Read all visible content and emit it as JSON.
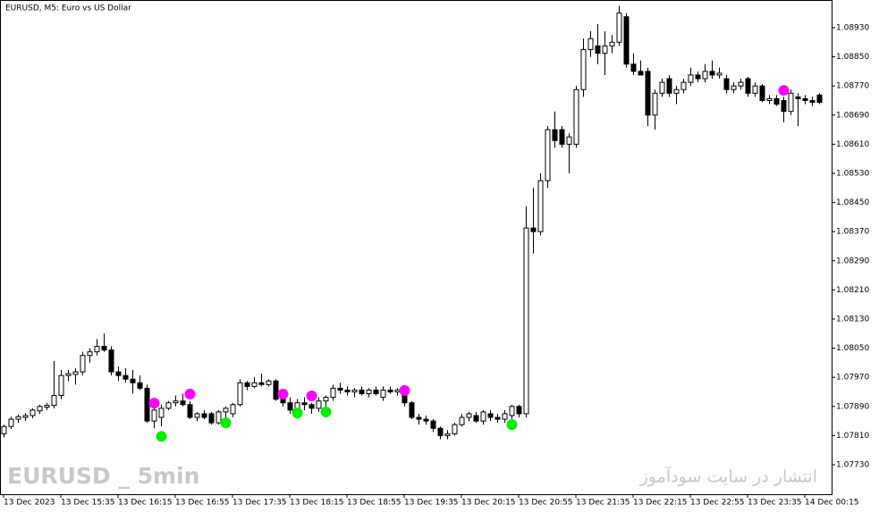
{
  "chart_data": {
    "type": "candlestick",
    "title": "EURUSD, M5:  Euro vs US Dollar",
    "watermark_left": "EURUSD _ 5min",
    "watermark_right": "انتشار در سایت سودآموز",
    "categories": [
      "13 Dec 2023",
      null,
      null,
      null,
      null,
      null,
      null,
      null,
      "13 Dec 15:35",
      null,
      null,
      null,
      null,
      null,
      null,
      null,
      "13 Dec 16:15",
      null,
      null,
      null,
      null,
      null,
      null,
      null,
      "13 Dec 16:55",
      null,
      null,
      null,
      null,
      null,
      null,
      null,
      "13 Dec 17:35",
      null,
      null,
      null,
      null,
      null,
      null,
      null,
      "13 Dec 18:15",
      null,
      null,
      null,
      null,
      null,
      null,
      null,
      "13 Dec 18:55",
      null,
      null,
      null,
      null,
      null,
      null,
      null,
      "13 Dec 19:35",
      null,
      null,
      null,
      null,
      null,
      null,
      null,
      "13 Dec 20:15",
      null,
      null,
      null,
      null,
      null,
      null,
      null,
      "13 Dec 20:55",
      null,
      null,
      null,
      null,
      null,
      null,
      null,
      "13 Dec 21:35",
      null,
      null,
      null,
      null,
      null,
      null,
      null,
      "13 Dec 22:15",
      null,
      null,
      null,
      null,
      null,
      null,
      null,
      "13 Dec 22:55",
      null,
      null,
      null,
      null,
      null,
      null,
      null,
      "13 Dec 23:35",
      null,
      null,
      null,
      null,
      null,
      null,
      null,
      "14 Dec 00:15",
      null,
      null
    ],
    "open": [
      1.07815,
      1.07835,
      1.07855,
      1.0786,
      1.07865,
      1.07878,
      1.07888,
      1.07893,
      1.0792,
      1.07975,
      1.07978,
      1.07985,
      1.0803,
      1.0804,
      1.08055,
      1.08045,
      1.07985,
      1.07975,
      1.07965,
      1.07955,
      1.0794,
      1.0785,
      1.0786,
      1.07885,
      1.079,
      1.07905,
      1.07895,
      1.0786,
      1.0787,
      1.0787,
      1.07845,
      1.07875,
      1.0787,
      1.07895,
      1.07955,
      1.07945,
      1.07955,
      1.0795,
      1.0796,
      1.0791,
      1.079,
      1.0788,
      1.079,
      1.07895,
      1.07885,
      1.07905,
      1.07915,
      1.0794,
      1.07935,
      1.0793,
      1.07935,
      1.07925,
      1.07935,
      1.07915,
      1.07935,
      1.0793,
      1.07935,
      1.079,
      1.0786,
      1.07855,
      1.0785,
      1.0783,
      1.0781,
      1.07815,
      1.0784,
      1.0786,
      1.07865,
      1.0785,
      1.0787,
      1.0786,
      1.07855,
      1.07865,
      1.0789,
      1.0787,
      1.0838,
      1.0837,
      1.0851,
      1.0865,
      1.0865,
      1.0861,
      1.0861,
      1.0876,
      1.0887,
      1.0888,
      1.0886,
      1.0888,
      1.0889,
      1.0896,
      1.0883,
      1.0881,
      1.0881,
      1.0869,
      1.0875,
      1.0879,
      1.0875,
      1.0876,
      1.0878,
      1.088,
      1.0879,
      1.0881,
      1.088,
      1.0879,
      1.0876,
      1.0877,
      1.0879,
      1.0875,
      1.0877,
      1.0873,
      1.08735,
      1.0873,
      1.087,
      1.0874,
      1.08735,
      1.0873,
      1.08745
    ],
    "high": [
      1.0784,
      1.07862,
      1.07868,
      1.07872,
      1.07885,
      1.07895,
      1.079,
      1.08015,
      1.0799,
      1.0799,
      1.07995,
      1.0804,
      1.0805,
      1.08075,
      1.0809,
      1.08055,
      1.08,
      1.07995,
      1.0799,
      1.07975,
      1.0795,
      1.07895,
      1.07895,
      1.07905,
      1.0792,
      1.07925,
      1.07905,
      1.07875,
      1.0788,
      1.07875,
      1.0788,
      1.0789,
      1.079,
      1.07965,
      1.0796,
      1.0797,
      1.0798,
      1.07965,
      1.07965,
      1.07935,
      1.07915,
      1.0791,
      1.07915,
      1.079,
      1.07915,
      1.0792,
      1.0795,
      1.07955,
      1.07945,
      1.0794,
      1.07945,
      1.0794,
      1.07945,
      1.07945,
      1.07945,
      1.0794,
      1.0794,
      1.07905,
      1.0787,
      1.07865,
      1.07855,
      1.07835,
      1.07825,
      1.07845,
      1.0787,
      1.07875,
      1.07875,
      1.0788,
      1.0788,
      1.0787,
      1.0788,
      1.07895,
      1.07895,
      1.0844,
      1.0849,
      1.0853,
      1.0866,
      1.087,
      1.0866,
      1.0864,
      1.0877,
      1.089,
      1.0892,
      1.0894,
      1.0892,
      1.0891,
      1.0899,
      1.0897,
      1.0886,
      1.0884,
      1.0882,
      1.0876,
      1.0879,
      1.088,
      1.0877,
      1.0879,
      1.0882,
      1.0881,
      1.0883,
      1.0884,
      1.0882,
      1.088,
      1.0878,
      1.0879,
      1.08795,
      1.0878,
      1.08775,
      1.08745,
      1.08745,
      1.0874,
      1.0876,
      1.0875,
      1.08745,
      1.0874,
      1.0875
    ],
    "low": [
      1.07805,
      1.07828,
      1.07845,
      1.0785,
      1.07858,
      1.0787,
      1.0788,
      1.07885,
      1.0791,
      1.0796,
      1.0795,
      1.07975,
      1.0801,
      1.0803,
      1.0804,
      1.07975,
      1.0796,
      1.07955,
      1.07925,
      1.07935,
      1.07845,
      1.0783,
      1.07835,
      1.0788,
      1.0789,
      1.0789,
      1.07855,
      1.0785,
      1.07855,
      1.0784,
      1.0784,
      1.0785,
      1.0786,
      1.0789,
      1.07935,
      1.0794,
      1.07945,
      1.07945,
      1.07905,
      1.0789,
      1.0787,
      1.0787,
      1.0788,
      1.0787,
      1.07875,
      1.0789,
      1.07905,
      1.07925,
      1.0792,
      1.07915,
      1.0792,
      1.07915,
      1.0792,
      1.07905,
      1.07925,
      1.0792,
      1.0789,
      1.07855,
      1.0784,
      1.0784,
      1.0782,
      1.078,
      1.078,
      1.0781,
      1.07835,
      1.0785,
      1.07845,
      1.0784,
      1.0785,
      1.07845,
      1.07845,
      1.07855,
      1.0786,
      1.0786,
      1.0831,
      1.0836,
      1.0849,
      1.086,
      1.086,
      1.0853,
      1.086,
      1.0874,
      1.0885,
      1.0883,
      1.088,
      1.0886,
      1.0888,
      1.0882,
      1.088,
      1.088,
      1.0866,
      1.0865,
      1.0874,
      1.0874,
      1.0872,
      1.0875,
      1.0877,
      1.0878,
      1.0878,
      1.0879,
      1.0879,
      1.0875,
      1.0875,
      1.0876,
      1.0874,
      1.0874,
      1.08725,
      1.0872,
      1.08715,
      1.0867,
      1.0869,
      1.0866,
      1.0872,
      1.08715,
      1.0872
    ],
    "close": [
      1.07835,
      1.07855,
      1.07862,
      1.07865,
      1.0788,
      1.0789,
      1.07893,
      1.0792,
      1.07975,
      1.0798,
      1.07985,
      1.0803,
      1.0804,
      1.08055,
      1.08045,
      1.07985,
      1.07975,
      1.07965,
      1.07955,
      1.0794,
      1.0785,
      1.0788,
      1.07885,
      1.079,
      1.07905,
      1.07895,
      1.0786,
      1.0787,
      1.0786,
      1.07845,
      1.07875,
      1.07885,
      1.07895,
      1.07955,
      1.07945,
      1.07955,
      1.0795,
      1.0796,
      1.0791,
      1.079,
      1.0788,
      1.079,
      1.07895,
      1.07885,
      1.07905,
      1.07915,
      1.0794,
      1.07935,
      1.0793,
      1.07935,
      1.07925,
      1.07935,
      1.07925,
      1.07935,
      1.0793,
      1.07935,
      1.079,
      1.0786,
      1.07855,
      1.0785,
      1.0783,
      1.0781,
      1.07815,
      1.0784,
      1.0786,
      1.0787,
      1.0785,
      1.07875,
      1.0786,
      1.07855,
      1.0787,
      1.0789,
      1.0787,
      1.0838,
      1.0837,
      1.0851,
      1.0865,
      1.0862,
      1.0861,
      1.0863,
      1.0876,
      1.0887,
      1.089,
      1.0886,
      1.0888,
      1.0889,
      1.0897,
      1.0883,
      1.0881,
      1.088,
      1.0869,
      1.0875,
      1.0878,
      1.0875,
      1.0876,
      1.0878,
      1.088,
      1.0879,
      1.0881,
      1.088,
      1.08805,
      1.0876,
      1.0877,
      1.0878,
      1.0875,
      1.0877,
      1.0873,
      1.08735,
      1.0872,
      1.087,
      1.0875,
      1.08735,
      1.0873,
      1.08725,
      1.08725
    ],
    "bull_color": "#ffffff",
    "bear_color": "#000000",
    "outline_color": "#000000",
    "sell_markers": {
      "color": "#ff00ff",
      "indices": [
        21,
        26,
        39,
        43,
        56,
        109
      ],
      "values": [
        1.07899,
        1.07924,
        1.07924,
        1.07919,
        1.07934,
        1.08758
      ]
    },
    "buy_markers": {
      "color": "#00ee00",
      "indices": [
        22,
        31,
        41,
        45,
        71
      ],
      "values": [
        1.07808,
        1.07845,
        1.07872,
        1.07875,
        1.0784
      ]
    },
    "ylim": [
      1.07649,
      1.09006
    ],
    "yticks": [
      {
        "value": 1.0893,
        "label": "1.08930"
      },
      {
        "value": 1.0885,
        "label": "1.08850"
      },
      {
        "value": 1.0877,
        "label": "1.08770"
      },
      {
        "value": 1.0869,
        "label": "1.08690"
      },
      {
        "value": 1.0861,
        "label": "1.08610"
      },
      {
        "value": 1.0853,
        "label": "1.08530"
      },
      {
        "value": 1.0845,
        "label": "1.08450"
      },
      {
        "value": 1.0837,
        "label": "1.08370"
      },
      {
        "value": 1.0829,
        "label": "1.08290"
      },
      {
        "value": 1.0821,
        "label": "1.08210"
      },
      {
        "value": 1.0813,
        "label": "1.08130"
      },
      {
        "value": 1.0805,
        "label": "1.08050"
      },
      {
        "value": 1.0797,
        "label": "1.07970"
      },
      {
        "value": 1.0789,
        "label": "1.07890"
      },
      {
        "value": 1.0781,
        "label": "1.07810"
      },
      {
        "value": 1.0773,
        "label": "1.07730"
      }
    ]
  }
}
